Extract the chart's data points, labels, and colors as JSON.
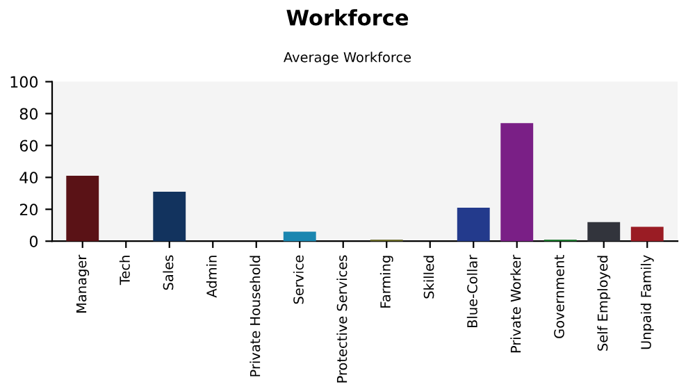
{
  "chart_data": {
    "type": "bar",
    "title": "Workforce",
    "subtitle": "Average Workforce",
    "categories": [
      "Manager",
      "Tech",
      "Sales",
      "Admin",
      "Private Household",
      "Service",
      "Protective Services",
      "Farming",
      "Skilled",
      "Blue-Collar",
      "Private Worker",
      "Government",
      "Self Employed",
      "Unpaid Family"
    ],
    "values": [
      41,
      0,
      31,
      0,
      0,
      6,
      0,
      1,
      0,
      21,
      74,
      1,
      12,
      9
    ],
    "colors": [
      "#5a1216",
      "#5a1216",
      "#12335e",
      "#12335e",
      "#1a86b0",
      "#1a86b0",
      "#6b6b2a",
      "#6b6b2a",
      "#233a8c",
      "#233a8c",
      "#7a1f86",
      "#1f7a30",
      "#32343c",
      "#9a1c24"
    ],
    "ylim": [
      0,
      100
    ],
    "yticks": [
      0,
      20,
      40,
      60,
      80,
      100
    ],
    "grid": false
  }
}
